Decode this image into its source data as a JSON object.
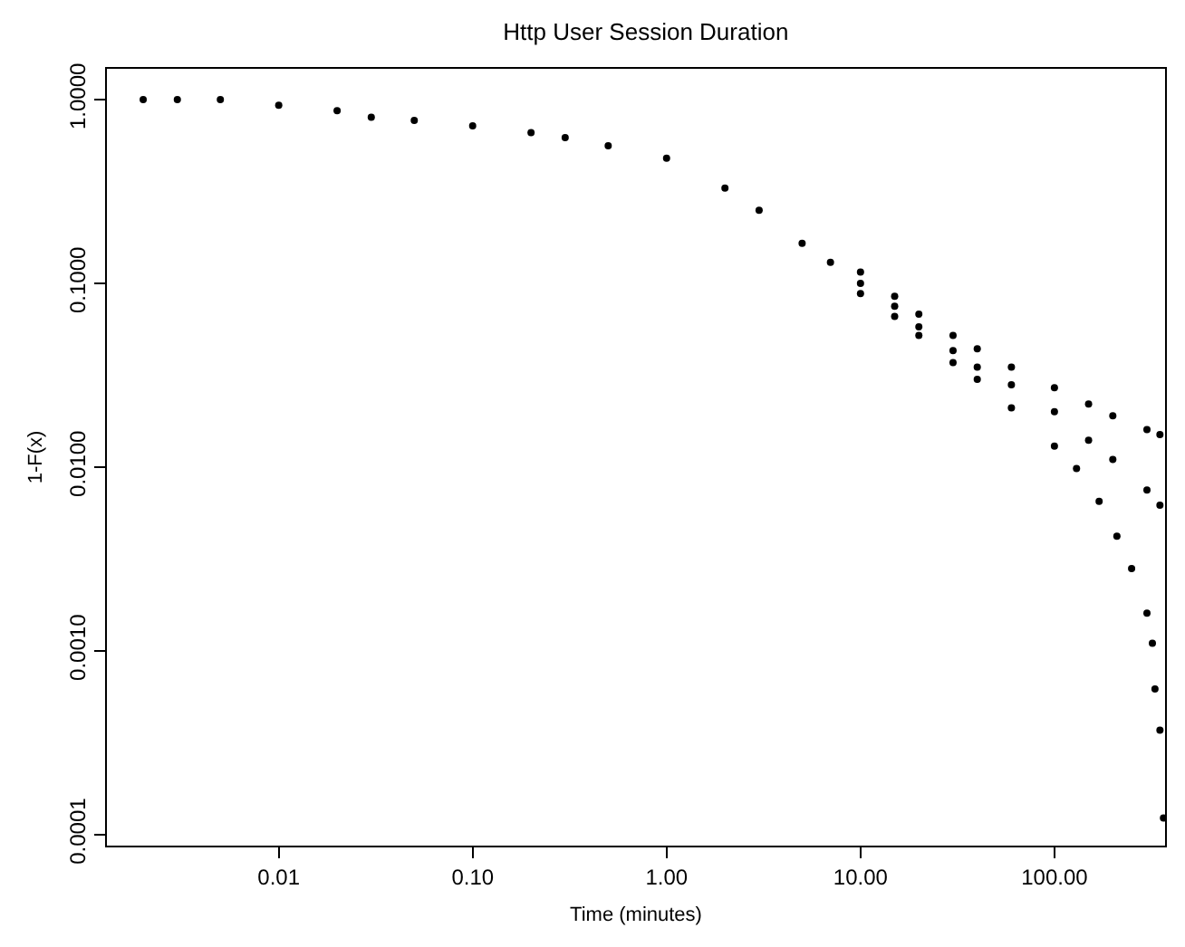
{
  "chart_data": {
    "type": "scatter",
    "title": "Http User Session Duration",
    "xlabel": "Time (minutes)",
    "ylabel": "1-F(x)",
    "log": "xy",
    "grid": false,
    "marker": "circle",
    "xlim": [
      0.0013,
      372
    ],
    "ylim": [
      8.7e-05,
      1.47
    ],
    "xticks": [
      {
        "value": 0.01,
        "label": "0.01"
      },
      {
        "value": 0.1,
        "label": "0.10"
      },
      {
        "value": 1,
        "label": "1.00"
      },
      {
        "value": 10,
        "label": "10.00"
      },
      {
        "value": 100,
        "label": "100.00"
      }
    ],
    "yticks": [
      {
        "value": 0.0001,
        "label": "0.0001"
      },
      {
        "value": 0.001,
        "label": "0.0010"
      },
      {
        "value": 0.01,
        "label": "0.0100"
      },
      {
        "value": 0.1,
        "label": "0.1000"
      },
      {
        "value": 1,
        "label": "1.0000"
      }
    ],
    "series": [
      {
        "color": "#000000",
        "x": [
          0.002,
          0.003,
          0.005,
          0.01,
          0.02,
          0.03,
          0.05,
          0.1,
          0.2,
          0.3,
          0.5,
          1,
          2,
          3,
          5,
          7,
          10,
          15,
          20,
          30,
          40,
          60,
          100,
          150,
          200,
          300,
          350
        ],
        "values": [
          1.0,
          1.0,
          1.0,
          0.93,
          0.87,
          0.8,
          0.77,
          0.72,
          0.66,
          0.62,
          0.56,
          0.48,
          0.33,
          0.25,
          0.165,
          0.13,
          0.115,
          0.085,
          0.068,
          0.052,
          0.044,
          0.035,
          0.027,
          0.022,
          0.019,
          0.016,
          0.015
        ]
      },
      {
        "color": "#000000",
        "x": [
          10,
          15,
          20,
          30,
          40,
          60,
          100,
          150,
          200,
          300,
          350
        ],
        "values": [
          0.1,
          0.075,
          0.058,
          0.043,
          0.035,
          0.028,
          0.02,
          0.014,
          0.011,
          0.0075,
          0.0062
        ]
      },
      {
        "color": "#000000",
        "x": [
          10,
          15,
          20,
          30,
          40,
          60,
          100,
          130,
          170,
          210,
          250,
          300,
          320,
          330,
          350,
          365
        ],
        "values": [
          0.088,
          0.066,
          0.052,
          0.037,
          0.03,
          0.021,
          0.013,
          0.0098,
          0.0065,
          0.0042,
          0.0028,
          0.0016,
          0.0011,
          0.00062,
          0.00037,
          0.000123
        ]
      }
    ]
  }
}
